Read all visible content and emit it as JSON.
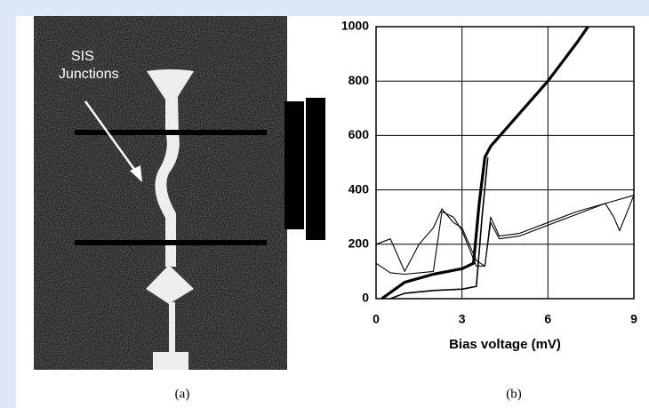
{
  "panel_a": {
    "annotation": [
      "SIS",
      "Junctions"
    ],
    "caption": "(a)"
  },
  "chart_data": {
    "type": "line",
    "xlabel": "Bias voltage (mV)",
    "caption": "(b)",
    "xlim": [
      0,
      9
    ],
    "ylim": [
      0,
      1000
    ],
    "xticks": [
      0,
      3,
      6,
      9
    ],
    "yticks": [
      0,
      200,
      400,
      600,
      800,
      1000
    ],
    "grid": true,
    "series": [
      {
        "color": "#000000",
        "line_width": 3.2,
        "x": [
          0.2,
          1,
          2,
          3,
          3.4,
          3.6,
          3.8,
          4,
          5,
          6,
          7,
          7.4
        ],
        "values": [
          0,
          60,
          90,
          110,
          130,
          350,
          520,
          560,
          680,
          800,
          940,
          1000
        ]
      },
      {
        "color": "#000000",
        "line_width": 1.6,
        "x": [
          0.5,
          1,
          2,
          3,
          3.5,
          3.7,
          3.9
        ],
        "values": [
          0,
          20,
          30,
          35,
          45,
          300,
          520
        ]
      },
      {
        "color": "#000000",
        "line_width": 1.1,
        "x": [
          0,
          0.5,
          1,
          1.5,
          2,
          2.3,
          2.7,
          3,
          3.5,
          3.8,
          4,
          4.3,
          5,
          6,
          7,
          8,
          8.3,
          8.5,
          9
        ],
        "values": [
          200,
          220,
          100,
          200,
          260,
          330,
          280,
          260,
          140,
          120,
          300,
          230,
          240,
          280,
          320,
          350,
          300,
          250,
          380
        ]
      },
      {
        "color": "#000000",
        "line_width": 1.1,
        "x": [
          0,
          0.5,
          1,
          2,
          2.3,
          2.7,
          3,
          3.5,
          3.8,
          4,
          4.3,
          5,
          6,
          7,
          8,
          9
        ],
        "values": [
          130,
          95,
          90,
          100,
          320,
          300,
          250,
          120,
          120,
          280,
          220,
          230,
          270,
          310,
          350,
          380
        ]
      }
    ]
  }
}
